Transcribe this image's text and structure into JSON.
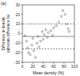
{
  "chart_data": {
    "type": "scatter",
    "panel_label": "(a)",
    "xlabel": "Mean density (%)",
    "ylabel": [
      "Difference in density",
      "(absolute difference %)"
    ],
    "x": [
      5,
      8,
      10,
      12,
      15,
      18,
      20,
      22,
      25,
      28,
      30,
      32,
      35,
      38,
      40,
      42,
      45,
      48,
      50,
      55,
      58,
      60,
      65,
      70,
      75,
      78,
      82,
      85,
      88,
      90
    ],
    "values": [
      -2,
      -8,
      -15,
      -20,
      -22,
      -12,
      -5,
      -18,
      -25,
      -10,
      -3,
      -14,
      -8,
      2,
      -6,
      -1,
      4,
      -4,
      1,
      3,
      -2,
      6,
      8,
      12,
      18,
      24,
      20,
      10,
      5,
      2
    ],
    "color": "#555555",
    "marker": "circle",
    "xlim": [
      0,
      100
    ],
    "xticks": [
      0,
      20,
      40,
      60,
      80,
      100
    ],
    "ylim": [
      -30,
      30
    ],
    "yticks": [
      -30,
      -20,
      -10,
      0,
      10,
      20,
      30
    ],
    "reference_lines": [
      {
        "value": 10,
        "line_style": "dashed"
      },
      {
        "value": -3,
        "line_style": "solid"
      },
      {
        "value": -16,
        "line_style": "dashed"
      }
    ]
  }
}
